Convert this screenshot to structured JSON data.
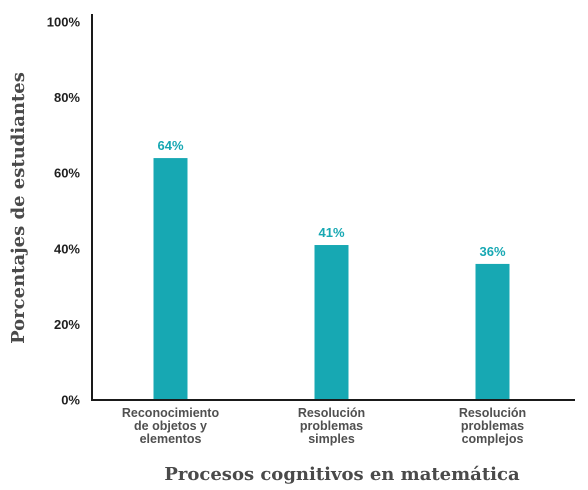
{
  "chart_data": {
    "type": "bar",
    "categories": [
      [
        "Reconocimiento",
        "de objetos y",
        "elementos"
      ],
      [
        "Resolución",
        "problemas",
        "simples"
      ],
      [
        "Resolución",
        "problemas",
        "complejos"
      ]
    ],
    "values": [
      64,
      41,
      36
    ],
    "data_labels": [
      "64%",
      "41%",
      "36%"
    ],
    "xlabel": "Procesos cognitivos en matemática",
    "ylabel": "Porcentajes de estudiantes",
    "ylim": [
      0,
      100
    ],
    "yticks": [
      {
        "value": 0,
        "label": "0%"
      },
      {
        "value": 20,
        "label": "20%"
      },
      {
        "value": 40,
        "label": "40%"
      },
      {
        "value": 60,
        "label": "60%"
      },
      {
        "value": 80,
        "label": "80%"
      },
      {
        "value": 100,
        "label": "100%"
      }
    ],
    "grid": false,
    "colors": {
      "bar": "#17a8b3",
      "label": "#17a8b3",
      "axis": "#1a1a1a"
    }
  }
}
